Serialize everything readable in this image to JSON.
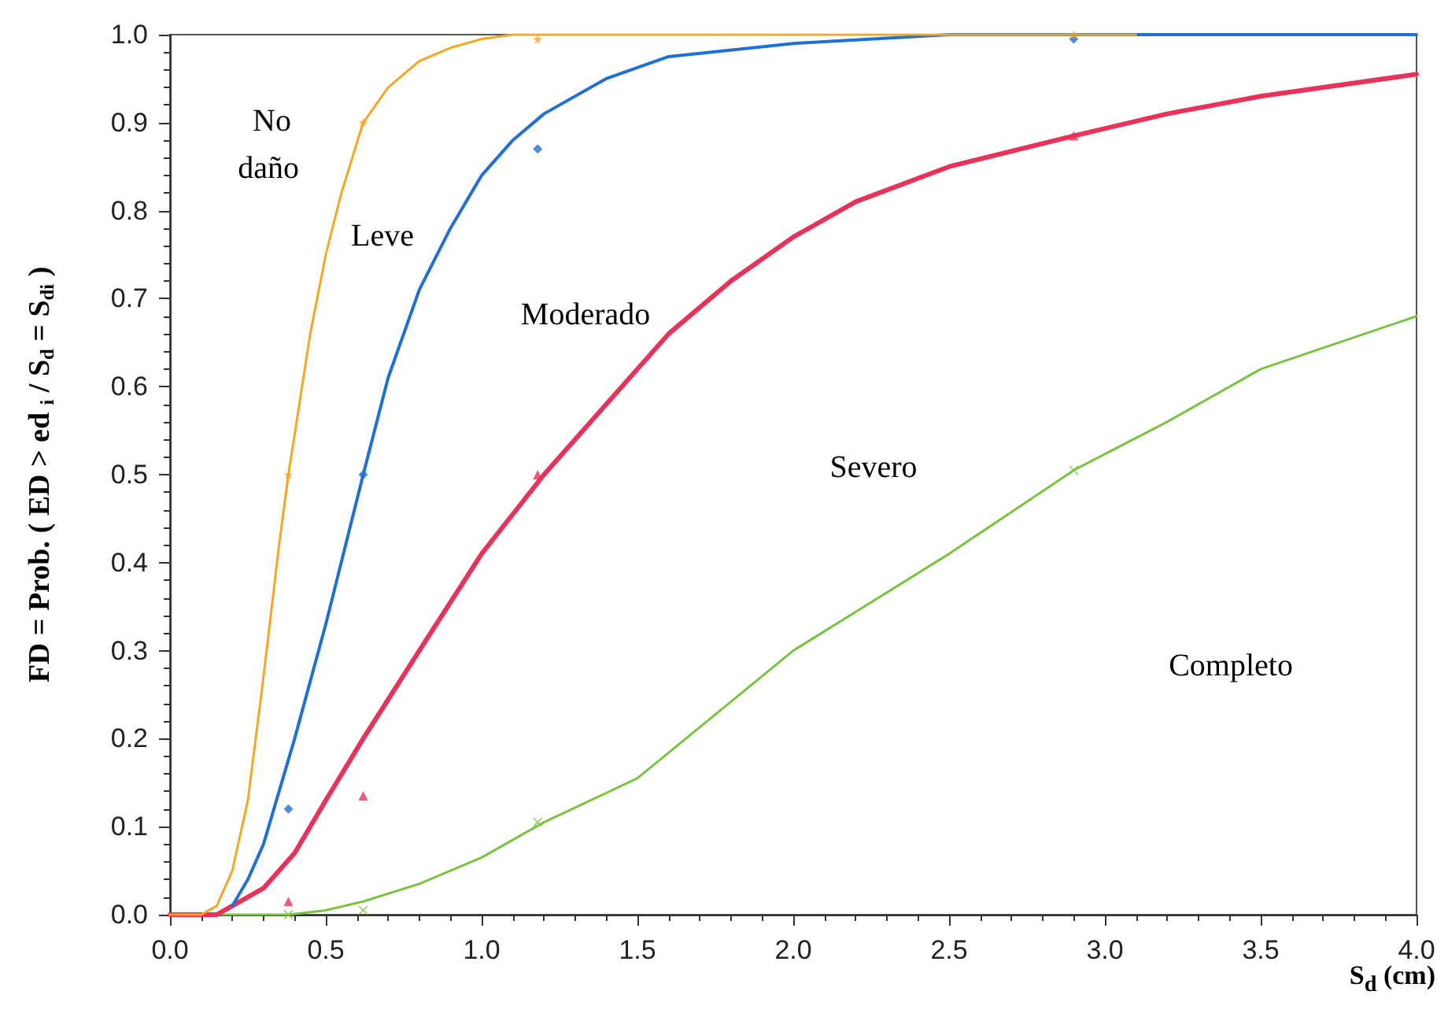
{
  "chart_data": {
    "type": "line",
    "xlabel": "S$_{d}$ (cm)",
    "ylabel": "FD = Prob. ( ED > ed $_{i}$ / S$_{d}$ = S$_{di}$ )",
    "xlim": [
      0,
      4
    ],
    "ylim": [
      0,
      1
    ],
    "xticks": [
      {
        "value": 0,
        "label": "0.0"
      },
      {
        "value": 0.5,
        "label": "0.5"
      },
      {
        "value": 1,
        "label": "1.0"
      },
      {
        "value": 1.5,
        "label": "1.5"
      },
      {
        "value": 2,
        "label": "2.0"
      },
      {
        "value": 2.5,
        "label": "2.5"
      },
      {
        "value": 3,
        "label": "3.0"
      },
      {
        "value": 3.5,
        "label": "3.5"
      },
      {
        "value": 4,
        "label": "4.0"
      }
    ],
    "yticks": [
      {
        "value": 0,
        "label": "0.0"
      },
      {
        "value": 0.1,
        "label": "0.1"
      },
      {
        "value": 0.2,
        "label": "0.2"
      },
      {
        "value": 0.3,
        "label": "0.3"
      },
      {
        "value": 0.4,
        "label": "0.4"
      },
      {
        "value": 0.5,
        "label": "0.5"
      },
      {
        "value": 0.6,
        "label": "0.6"
      },
      {
        "value": 0.7,
        "label": "0.7"
      },
      {
        "value": 0.8,
        "label": "0.8"
      },
      {
        "value": 0.9,
        "label": "0.9"
      },
      {
        "value": 1,
        "label": "1.0"
      }
    ],
    "grid": false,
    "legend": false,
    "marker": "none",
    "line_style": "solid",
    "series": [
      {
        "name": "No daño",
        "color": "#f5a623",
        "x": [
          0,
          0.1,
          0.15,
          0.2,
          0.25,
          0.3,
          0.35,
          0.38,
          0.45,
          0.5,
          0.55,
          0.62,
          0.7,
          0.8,
          0.9,
          1.0,
          1.1,
          1.2,
          1.5,
          2,
          3.1
        ],
        "values": [
          0,
          0,
          0.01,
          0.05,
          0.13,
          0.27,
          0.42,
          0.5,
          0.66,
          0.75,
          0.82,
          0.9,
          0.94,
          0.97,
          0.985,
          0.995,
          1,
          1,
          1,
          1,
          1
        ]
      },
      {
        "name": "Leve",
        "color": "#1f6fd6",
        "x": [
          0.2,
          0.25,
          0.3,
          0.4,
          0.5,
          0.62,
          0.7,
          0.8,
          0.9,
          1.0,
          1.1,
          1.2,
          1.4,
          1.6,
          2.0,
          2.5,
          3,
          4
        ],
        "values": [
          0.01,
          0.04,
          0.08,
          0.2,
          0.33,
          0.5,
          0.61,
          0.71,
          0.78,
          0.84,
          0.88,
          0.91,
          0.95,
          0.975,
          0.99,
          1,
          1,
          1
        ]
      },
      {
        "name": "Moderado",
        "color": "#e8325a",
        "x": [
          0,
          0.15,
          0.2,
          0.3,
          0.4,
          0.5,
          0.62,
          0.8,
          1.0,
          1.2,
          1.4,
          1.6,
          1.8,
          2.0,
          2.2,
          2.5,
          2.9,
          3.2,
          3.5,
          4.0
        ],
        "values": [
          0,
          0,
          0.01,
          0.03,
          0.07,
          0.13,
          0.2,
          0.3,
          0.41,
          0.5,
          0.58,
          0.66,
          0.72,
          0.77,
          0.81,
          0.85,
          0.885,
          0.91,
          0.93,
          0.955
        ]
      },
      {
        "name": "Severo",
        "color": "#7cc242",
        "x": [
          0,
          0.38,
          0.5,
          0.62,
          0.8,
          1.0,
          1.2,
          1.5,
          2.0,
          2.5,
          2.9,
          3.2,
          3.5,
          4.0
        ],
        "values": [
          0,
          0,
          0.005,
          0.015,
          0.035,
          0.065,
          0.105,
          0.155,
          0.3,
          0.41,
          0.505,
          0.56,
          0.62,
          0.68
        ]
      },
      {
        "type": "scatter",
        "color": "#f5a623",
        "marker": "star",
        "x": [
          0.38,
          0.62,
          1.18,
          2.9
        ],
        "values": [
          0.5,
          0.9,
          0.995,
          1
        ]
      },
      {
        "type": "scatter",
        "color": "#1f6fd6",
        "marker": "diamond",
        "x": [
          0.38,
          0.62,
          1.18,
          2.9
        ],
        "values": [
          0.12,
          0.5,
          0.87,
          0.995
        ]
      },
      {
        "type": "scatter",
        "color": "#e8325a",
        "marker": "triangle",
        "x": [
          0.38,
          0.62,
          1.18,
          2.9
        ],
        "values": [
          0.015,
          0.135,
          0.5,
          0.885
        ]
      },
      {
        "type": "scatter",
        "color": "#7cc242",
        "marker": "cross",
        "x": [
          0.38,
          0.62,
          1.18,
          2.9
        ],
        "values": [
          0,
          0.005,
          0.105,
          0.505
        ]
      }
    ],
    "annotations": [
      "Completo"
    ]
  }
}
